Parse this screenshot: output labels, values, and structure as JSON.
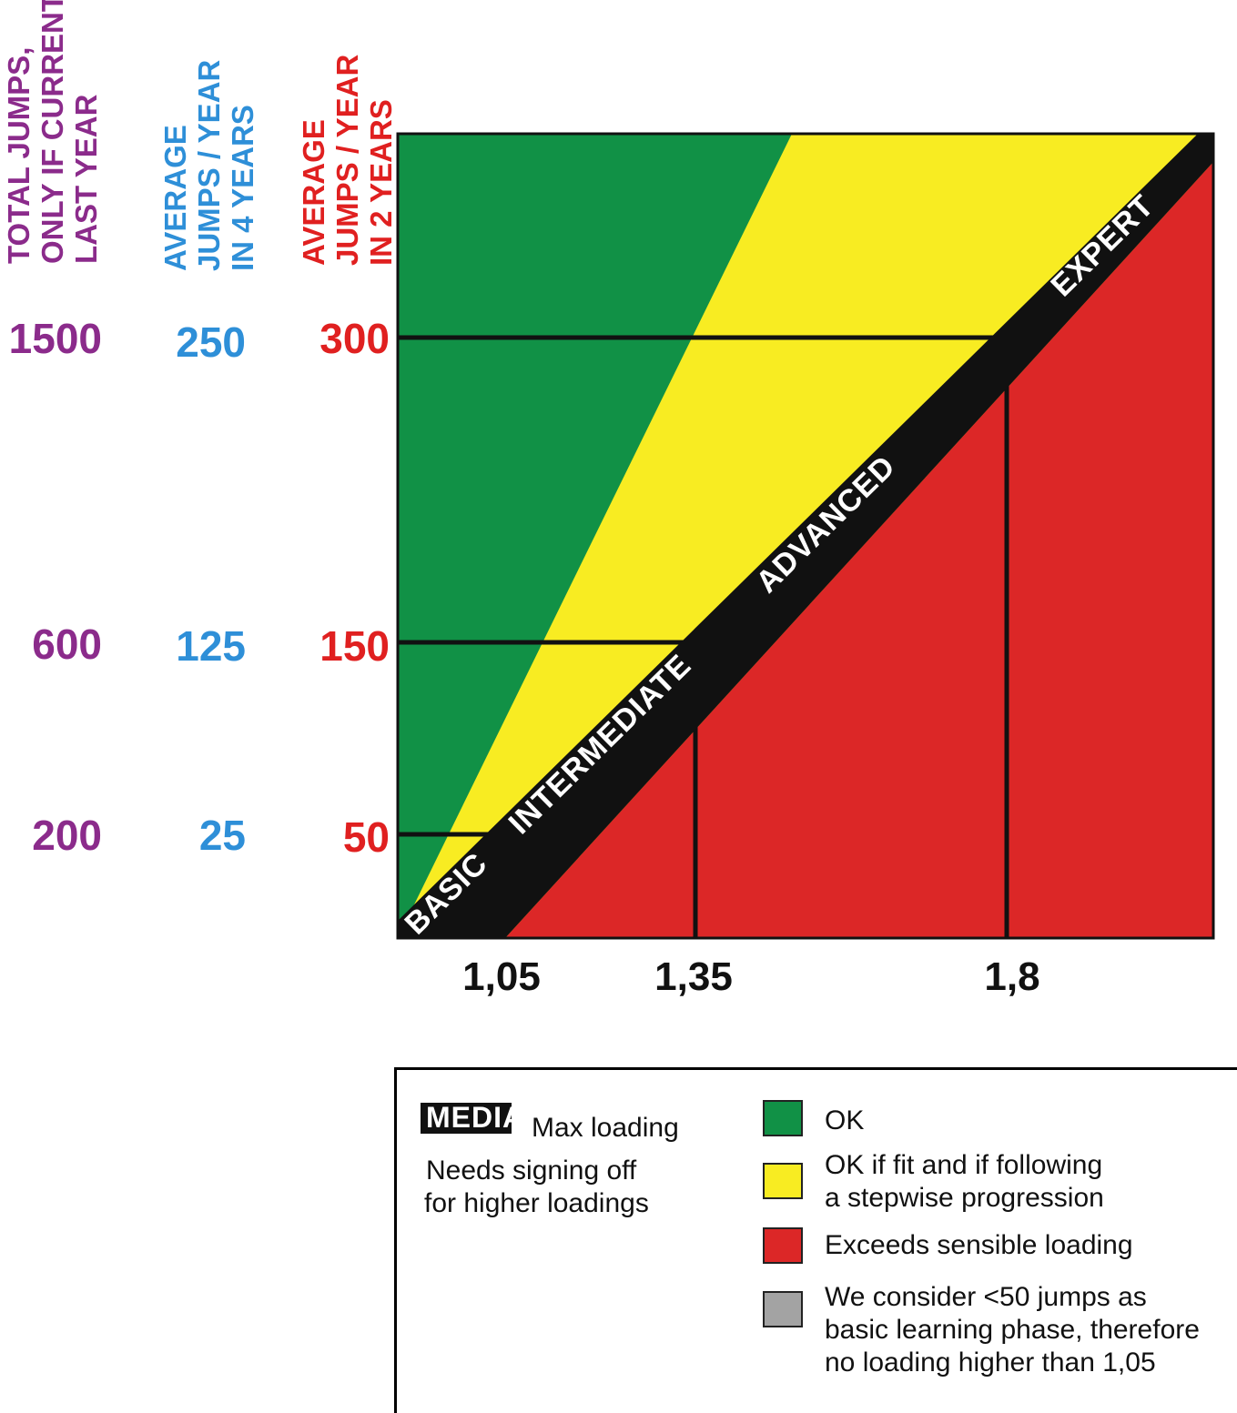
{
  "axes": {
    "total": {
      "title": [
        "TOTAL JUMPS,",
        "ONLY IF CURRENT",
        "LAST YEAR"
      ],
      "color": "#8b2b8b",
      "ticks": [
        "1500",
        "600",
        "200"
      ]
    },
    "avg4": {
      "title": [
        "AVERAGE",
        "JUMPS / YEAR",
        "IN 4 YEARS"
      ],
      "color": "#2e8fd8",
      "ticks": [
        "250",
        "125",
        "25"
      ]
    },
    "avg2": {
      "title": [
        "AVERAGE",
        "JUMPS / YEAR",
        "IN 2 YEARS"
      ],
      "color": "#e02020",
      "ticks": [
        "300",
        "150",
        "50"
      ]
    }
  },
  "chart_data": {
    "type": "area",
    "x_ticks": [
      "1,05",
      "1,35",
      "1,8"
    ],
    "y_ticks": [
      {
        "avg2": 300,
        "avg4": 250,
        "total": 1500
      },
      {
        "avg2": 150,
        "avg4": 125,
        "total": 600
      },
      {
        "avg2": 50,
        "avg4": 25,
        "total": 200
      }
    ],
    "zones": [
      {
        "name": "OK",
        "color": "#119146"
      },
      {
        "name": "OK if fit and if following a stepwise progression",
        "color": "#f8ec22"
      },
      {
        "name": "Exceeds sensible loading",
        "color": "#dc2727"
      },
      {
        "name": "We consider <50 jumps as basic learning phase, therefore no loading higher than 1,05",
        "color": "#a3a3a3"
      }
    ],
    "band_labels": [
      "BASIC",
      "INTERMEDIATE",
      "ADVANCED",
      "EXPERT"
    ]
  },
  "legend": {
    "chip_text": "MEDIA",
    "max_loading": "Max loading",
    "signing_lines": [
      "Needs signing off",
      "for higher loadings"
    ],
    "ok": "OK",
    "yellow_lines": [
      "OK if fit and if following",
      "a stepwise progression"
    ],
    "red": "Exceeds sensible loading",
    "grey_lines": [
      "We consider <50 jumps as",
      "basic learning phase, therefore",
      "no loading higher than 1,05"
    ]
  }
}
